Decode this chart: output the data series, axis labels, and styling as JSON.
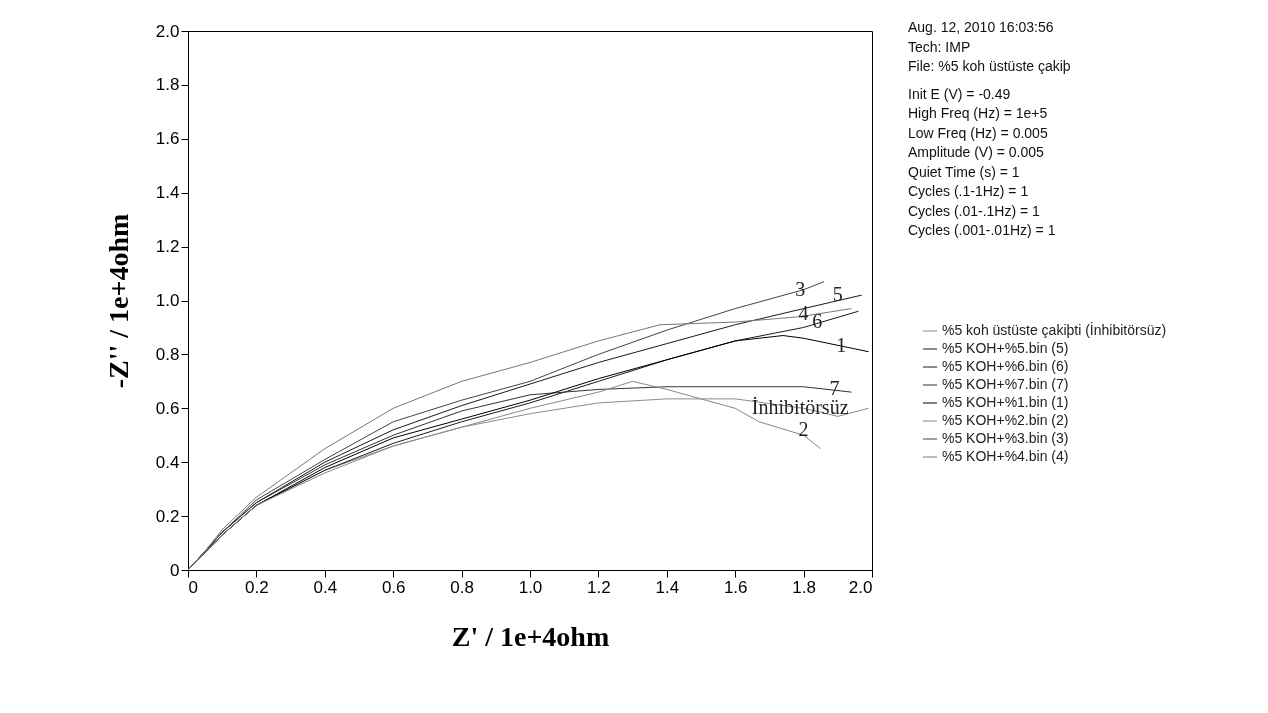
{
  "chart_data": {
    "type": "line",
    "xlabel": "Z' / 1e+4ohm",
    "ylabel": "-Z'' / 1e+4ohm",
    "xlim": [
      0,
      2
    ],
    "ylim": [
      0,
      2
    ],
    "xticks": [
      0,
      0.2,
      0.4,
      0.6,
      0.8,
      {
        "value": 1,
        "label": "1.0"
      },
      1.2,
      1.4,
      1.6,
      1.8,
      {
        "value": 2,
        "label": "2.0"
      }
    ],
    "yticks": [
      0,
      0.2,
      0.4,
      0.6,
      0.8,
      {
        "value": 1,
        "label": "1.0"
      },
      1.2,
      1.4,
      1.6,
      1.8,
      {
        "value": 2,
        "label": "2.0"
      }
    ],
    "grid": false,
    "legend": "right",
    "series": [
      {
        "name": "%5 koh üstüste çakiþti (İnhibitörsüz)",
        "color": "#8c8c8c",
        "x": [
          0,
          0.05,
          0.1,
          0.2,
          0.4,
          0.6,
          0.8,
          1.0,
          1.2,
          1.4,
          1.5,
          1.6,
          1.8,
          1.9,
          1.99
        ],
        "values": [
          0,
          0.065,
          0.13,
          0.24,
          0.37,
          0.46,
          0.53,
          0.58,
          0.62,
          0.635,
          0.635,
          0.635,
          0.6,
          0.57,
          0.6
        ]
      },
      {
        "name": "%5 KOH+%5.bin (5)",
        "color": "#1a1a1a",
        "x": [
          0,
          0.05,
          0.1,
          0.2,
          0.4,
          0.6,
          0.8,
          1.0,
          1.2,
          1.4,
          1.6,
          1.8,
          1.97
        ],
        "values": [
          0,
          0.07,
          0.14,
          0.25,
          0.4,
          0.52,
          0.61,
          0.69,
          0.77,
          0.84,
          0.91,
          0.97,
          1.02
        ]
      },
      {
        "name": "%5 KOH+%6.bin (6)",
        "color": "#1a1a1a",
        "x": [
          0,
          0.05,
          0.1,
          0.2,
          0.4,
          0.6,
          0.8,
          1.0,
          1.2,
          1.4,
          1.6,
          1.8,
          1.96
        ],
        "values": [
          0,
          0.065,
          0.13,
          0.24,
          0.37,
          0.47,
          0.55,
          0.62,
          0.7,
          0.78,
          0.85,
          0.9,
          0.96
        ]
      },
      {
        "name": "%5 KOH+%7.bin (7)",
        "color": "#333333",
        "x": [
          0,
          0.05,
          0.1,
          0.2,
          0.4,
          0.6,
          0.8,
          1.0,
          1.2,
          1.4,
          1.6,
          1.8,
          1.94
        ],
        "values": [
          0,
          0.07,
          0.14,
          0.25,
          0.39,
          0.5,
          0.59,
          0.65,
          0.67,
          0.68,
          0.68,
          0.68,
          0.66
        ]
      },
      {
        "name": "%5 KOH+%1.bin (1)",
        "color": "#000000",
        "x": [
          0,
          0.05,
          0.1,
          0.2,
          0.4,
          0.6,
          0.8,
          1.0,
          1.2,
          1.4,
          1.6,
          1.74,
          1.8,
          1.99
        ],
        "values": [
          0,
          0.065,
          0.13,
          0.24,
          0.38,
          0.49,
          0.56,
          0.63,
          0.71,
          0.78,
          0.85,
          0.87,
          0.86,
          0.81
        ]
      },
      {
        "name": "%5 KOH+%2.bin (2)",
        "color": "#888888",
        "x": [
          0,
          0.05,
          0.1,
          0.2,
          0.4,
          0.6,
          0.8,
          1.0,
          1.2,
          1.3,
          1.4,
          1.6,
          1.67,
          1.8,
          1.85
        ],
        "values": [
          0,
          0.065,
          0.13,
          0.24,
          0.36,
          0.46,
          0.53,
          0.6,
          0.66,
          0.7,
          0.67,
          0.6,
          0.55,
          0.5,
          0.45
        ]
      },
      {
        "name": "%5 KOH+%3.bin (3)",
        "color": "#444444",
        "x": [
          0,
          0.05,
          0.1,
          0.2,
          0.4,
          0.6,
          0.8,
          1.0,
          1.2,
          1.4,
          1.6,
          1.8,
          1.86
        ],
        "values": [
          0,
          0.07,
          0.14,
          0.26,
          0.41,
          0.55,
          0.63,
          0.7,
          0.8,
          0.89,
          0.97,
          1.04,
          1.07
        ]
      },
      {
        "name": "%5 KOH+%4.bin (4)",
        "color": "#777777",
        "x": [
          0,
          0.05,
          0.1,
          0.2,
          0.4,
          0.6,
          0.8,
          1.0,
          1.2,
          1.38,
          1.6,
          1.79,
          1.94
        ],
        "values": [
          0,
          0.07,
          0.15,
          0.27,
          0.45,
          0.6,
          0.7,
          0.77,
          0.85,
          0.91,
          0.92,
          0.94,
          0.97
        ]
      }
    ],
    "annotations": [
      "Aug. 12, 2010   16:03:56",
      "Tech: IMP",
      "File: %5 koh üstüste çakiþ",
      "Init E (V) = -0.49",
      "High Freq (Hz) = 1e+5",
      "Low Freq (Hz) = 0.005",
      "Amplitude (V) = 0.005",
      "Quiet Time (s) = 1",
      "Cycles (.1-1Hz) = 1",
      "Cycles (.01-.1Hz) = 1",
      "Cycles (.001-.01Hz) = 1",
      {
        "text": "3",
        "x": 1.79,
        "y": 1.04
      },
      {
        "text": "5",
        "x": 1.9,
        "y": 1.02
      },
      {
        "text": "4",
        "x": 1.8,
        "y": 0.95
      },
      {
        "text": "6",
        "x": 1.84,
        "y": 0.92
      },
      {
        "text": "1",
        "x": 1.91,
        "y": 0.83
      },
      {
        "text": "7",
        "x": 1.89,
        "y": 0.67
      },
      {
        "text": "İnhibitörsüz",
        "x": 1.79,
        "y": 0.6
      },
      {
        "text": "2",
        "x": 1.8,
        "y": 0.52
      }
    ]
  }
}
